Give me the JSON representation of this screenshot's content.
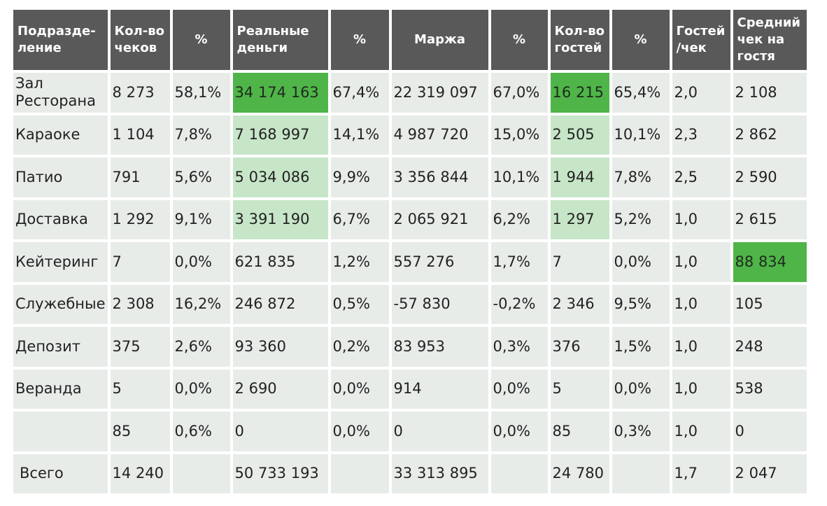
{
  "headers": [
    {
      "key": "division",
      "label": "Подразде-ление"
    },
    {
      "key": "checks",
      "label": "Кол-во чеков"
    },
    {
      "key": "checks_pct",
      "label": "%"
    },
    {
      "key": "money",
      "label": "Реальные деньги"
    },
    {
      "key": "money_pct",
      "label": "%"
    },
    {
      "key": "margin",
      "label": "Маржа"
    },
    {
      "key": "margin_pct",
      "label": "%"
    },
    {
      "key": "guests",
      "label": "Кол-во гостей"
    },
    {
      "key": "guests_pct",
      "label": "%"
    },
    {
      "key": "guests_per_check",
      "label": "Гостей /чек"
    },
    {
      "key": "avg_check",
      "label": "Средний чек на гостя"
    }
  ],
  "rows": [
    {
      "division": "Зал Ресторана",
      "checks": "8 273",
      "checks_pct": "58,1%",
      "money": "34 174 163",
      "money_pct": "67,4%",
      "margin": "22 319 097",
      "margin_pct": "67,0%",
      "guests": "16 215",
      "guests_pct": "65,4%",
      "guests_per_check": "2,0",
      "avg_check": "2 108"
    },
    {
      "division": "Караоке",
      "checks": "1 104",
      "checks_pct": "7,8%",
      "money": "7 168 997",
      "money_pct": "14,1%",
      "margin": "4 987 720",
      "margin_pct": "15,0%",
      "guests": "2 505",
      "guests_pct": "10,1%",
      "guests_per_check": "2,3",
      "avg_check": "2 862"
    },
    {
      "division": "Патио",
      "checks": "791",
      "checks_pct": "5,6%",
      "money": "5 034 086",
      "money_pct": "9,9%",
      "margin": "3 356 844",
      "margin_pct": "10,1%",
      "guests": "1 944",
      "guests_pct": "7,8%",
      "guests_per_check": "2,5",
      "avg_check": "2 590"
    },
    {
      "division": "Доставка",
      "checks": "1 292",
      "checks_pct": "9,1%",
      "money": "3 391 190",
      "money_pct": "6,7%",
      "margin": "2 065 921",
      "margin_pct": "6,2%",
      "guests": "1 297",
      "guests_pct": "5,2%",
      "guests_per_check": "1,0",
      "avg_check": "2 615"
    },
    {
      "division": "Кейтеринг",
      "checks": "7",
      "checks_pct": "0,0%",
      "money": "621 835",
      "money_pct": "1,2%",
      "margin": "557 276",
      "margin_pct": "1,7%",
      "guests": "7",
      "guests_pct": "0,0%",
      "guests_per_check": "1,0",
      "avg_check": "88 834"
    },
    {
      "division": "Служебные",
      "checks": "2 308",
      "checks_pct": "16,2%",
      "money": "246 872",
      "money_pct": "0,5%",
      "margin": "-57 830",
      "margin_pct": "-0,2%",
      "guests": "2 346",
      "guests_pct": "9,5%",
      "guests_per_check": "1,0",
      "avg_check": "105"
    },
    {
      "division": "Депозит",
      "checks": "375",
      "checks_pct": "2,6%",
      "money": "93 360",
      "money_pct": "0,2%",
      "margin": "83 953",
      "margin_pct": "0,3%",
      "guests": "376",
      "guests_pct": "1,5%",
      "guests_per_check": "1,0",
      "avg_check": "248"
    },
    {
      "division": "Веранда",
      "checks": "5",
      "checks_pct": "0,0%",
      "money": "2 690",
      "money_pct": "0,0%",
      "margin": "914",
      "margin_pct": "0,0%",
      "guests": "5",
      "guests_pct": "0,0%",
      "guests_per_check": "1,0",
      "avg_check": "538"
    },
    {
      "division": "",
      "checks": "85",
      "checks_pct": "0,6%",
      "money": "0",
      "money_pct": "0,0%",
      "margin": "0",
      "margin_pct": "0,0%",
      "guests": "85",
      "guests_pct": "0,3%",
      "guests_per_check": "1,0",
      "avg_check": "0"
    }
  ],
  "total": {
    "division": "Всего",
    "checks": "14 240",
    "checks_pct": "",
    "money": "50 733 193",
    "money_pct": "",
    "margin": "33 313 895",
    "margin_pct": "",
    "guests": "24 780",
    "guests_pct": "",
    "guests_per_check": "1,7",
    "avg_check": "2 047"
  },
  "colors": {
    "header_bg": "#595959",
    "cell_bg": "#e8ece9",
    "highlight_strong": "#4fb548",
    "highlight_light": "#c7e6c8"
  }
}
